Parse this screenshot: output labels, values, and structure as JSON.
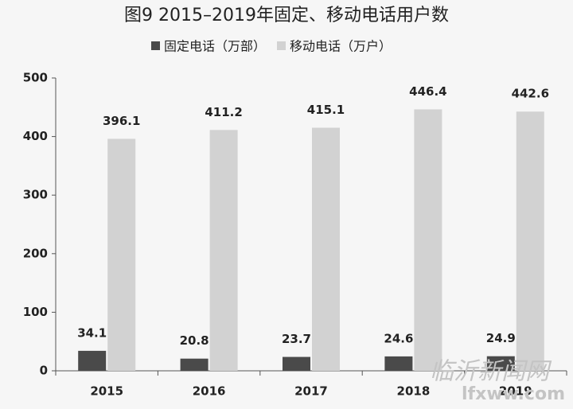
{
  "chart_data": {
    "type": "bar",
    "title": "图9 2015–2019年固定、移动电话用户数",
    "categories": [
      "2015",
      "2016",
      "2017",
      "2018",
      "2019"
    ],
    "series": [
      {
        "name": "固定电话（万部）",
        "color": "#4a4a4a",
        "values": [
          34.1,
          20.8,
          23.7,
          24.6,
          24.9
        ]
      },
      {
        "name": "移动电话（万户）",
        "color": "#d2d2d2",
        "values": [
          396.1,
          411.2,
          415.1,
          446.4,
          442.6
        ]
      }
    ],
    "ylim": [
      0,
      500
    ],
    "yticks": [
      0,
      100,
      200,
      300,
      400,
      500
    ],
    "grid": false,
    "watermark": "临沂新闻网",
    "watermark_url": "lfxww.com"
  }
}
